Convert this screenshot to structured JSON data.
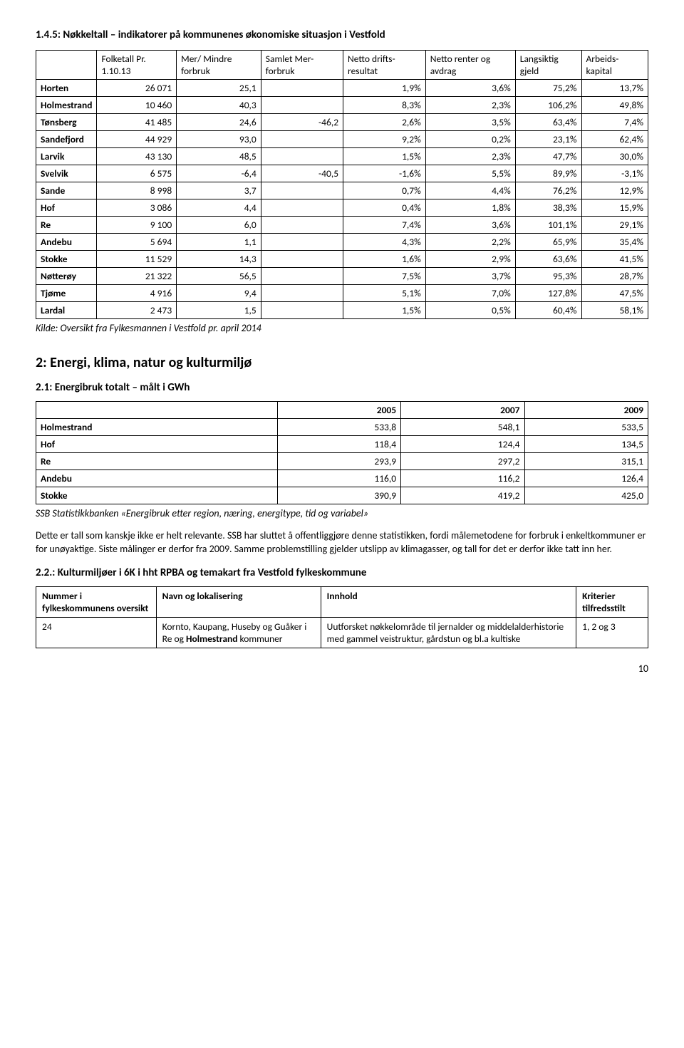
{
  "title145": "1.4.5: Nøkkeltall – indikatorer på kommunenes økonomiske situasjon i Vestfold",
  "t1": {
    "headers": [
      "",
      "Folketall Pr. 1.10.13",
      "Mer/ Mindre forbruk",
      "Samlet Mer- forbruk",
      "Netto drifts- resultat",
      "Netto renter og avdrag",
      "Langsiktig gjeld",
      "Arbeids- kapital"
    ],
    "rows": [
      [
        "Horten",
        "26 071",
        "25,1",
        "",
        "1,9%",
        "3,6%",
        "75,2%",
        "13,7%"
      ],
      [
        "Holmestrand",
        "10 460",
        "40,3",
        "",
        "8,3%",
        "2,3%",
        "106,2%",
        "49,8%"
      ],
      [
        "Tønsberg",
        "41 485",
        "24,6",
        "-46,2",
        "2,6%",
        "3,5%",
        "63,4%",
        "7,4%"
      ],
      [
        "Sandefjord",
        "44 929",
        "93,0",
        "",
        "9,2%",
        "0,2%",
        "23,1%",
        "62,4%"
      ],
      [
        "Larvik",
        "43 130",
        "48,5",
        "",
        "1,5%",
        "2,3%",
        "47,7%",
        "30,0%"
      ],
      [
        "Svelvik",
        "6 575",
        "-6,4",
        "-40,5",
        "-1,6%",
        "5,5%",
        "89,9%",
        "-3,1%"
      ],
      [
        "Sande",
        "8 998",
        "3,7",
        "",
        "0,7%",
        "4,4%",
        "76,2%",
        "12,9%"
      ],
      [
        "Hof",
        "3 086",
        "4,4",
        "",
        "0,4%",
        "1,8%",
        "38,3%",
        "15,9%"
      ],
      [
        "Re",
        "9 100",
        "6,0",
        "",
        "7,4%",
        "3,6%",
        "101,1%",
        "29,1%"
      ],
      [
        "Andebu",
        "5 694",
        "1,1",
        "",
        "4,3%",
        "2,2%",
        "65,9%",
        "35,4%"
      ],
      [
        "Stokke",
        "11 529",
        "14,3",
        "",
        "1,6%",
        "2,9%",
        "63,6%",
        "41,5%"
      ],
      [
        "Nøtterøy",
        "21 322",
        "56,5",
        "",
        "7,5%",
        "3,7%",
        "95,3%",
        "28,7%"
      ],
      [
        "Tjøme",
        "4 916",
        "9,4",
        "",
        "5,1%",
        "7,0%",
        "127,8%",
        "47,5%"
      ],
      [
        "Lardal",
        "2 473",
        "1,5",
        "",
        "1,5%",
        "0,5%",
        "60,4%",
        "58,1%"
      ]
    ]
  },
  "src1": "Kilde: Oversikt fra Fylkesmannen i Vestfold pr. april 2014",
  "section2": "2: Energi, klima, natur og kulturmiljø",
  "sub21": "2.1: Energibruk totalt – målt i GWh",
  "t2": {
    "headers": [
      "",
      "2005",
      "2007",
      "2009"
    ],
    "rows": [
      [
        "Holmestrand",
        "533,8",
        "548,1",
        "533,5"
      ],
      [
        "Hof",
        "118,4",
        "124,4",
        "134,5"
      ],
      [
        "Re",
        "293,9",
        "297,2",
        "315,1"
      ],
      [
        "Andebu",
        "116,0",
        "116,2",
        "126,4"
      ],
      [
        "Stokke",
        "390,9",
        "419,2",
        "425,0"
      ]
    ]
  },
  "src2": "SSB Statistikkbanken «Energibruk etter region, næring, energitype, tid og variabel»",
  "para1": "Dette er tall som kanskje ikke er helt relevante. SSB har sluttet å offentliggjøre denne statistikken, fordi målemetodene for forbruk i enkeltkommuner er for unøyaktige. Siste målinger er derfor fra 2009. Samme problemstilling gjelder utslipp av klimagasser, og tall for det er derfor ikke tatt inn her.",
  "sub22": "2.2.: Kulturmiljøer i 6K i hht RPBA og temakart fra Vestfold fylkeskommune",
  "t3": {
    "headers": [
      "Nummer i fylkeskommunens oversikt",
      "Navn og lokalisering",
      "Innhold",
      "Kriterier tilfredsstilt"
    ],
    "row": {
      "c0": "24",
      "c1a": "Kornto, Kaupang, Huseby og Guåker i Re og ",
      "c1b": "Holmestrand",
      "c1c": " kommuner",
      "c2": "Uutforsket nøkkelområde til jernalder og middelalderhistorie med gammel veistruktur, gårdstun og bl.a kultiske",
      "c3": "1, 2 og 3"
    }
  },
  "pagenum": "10"
}
